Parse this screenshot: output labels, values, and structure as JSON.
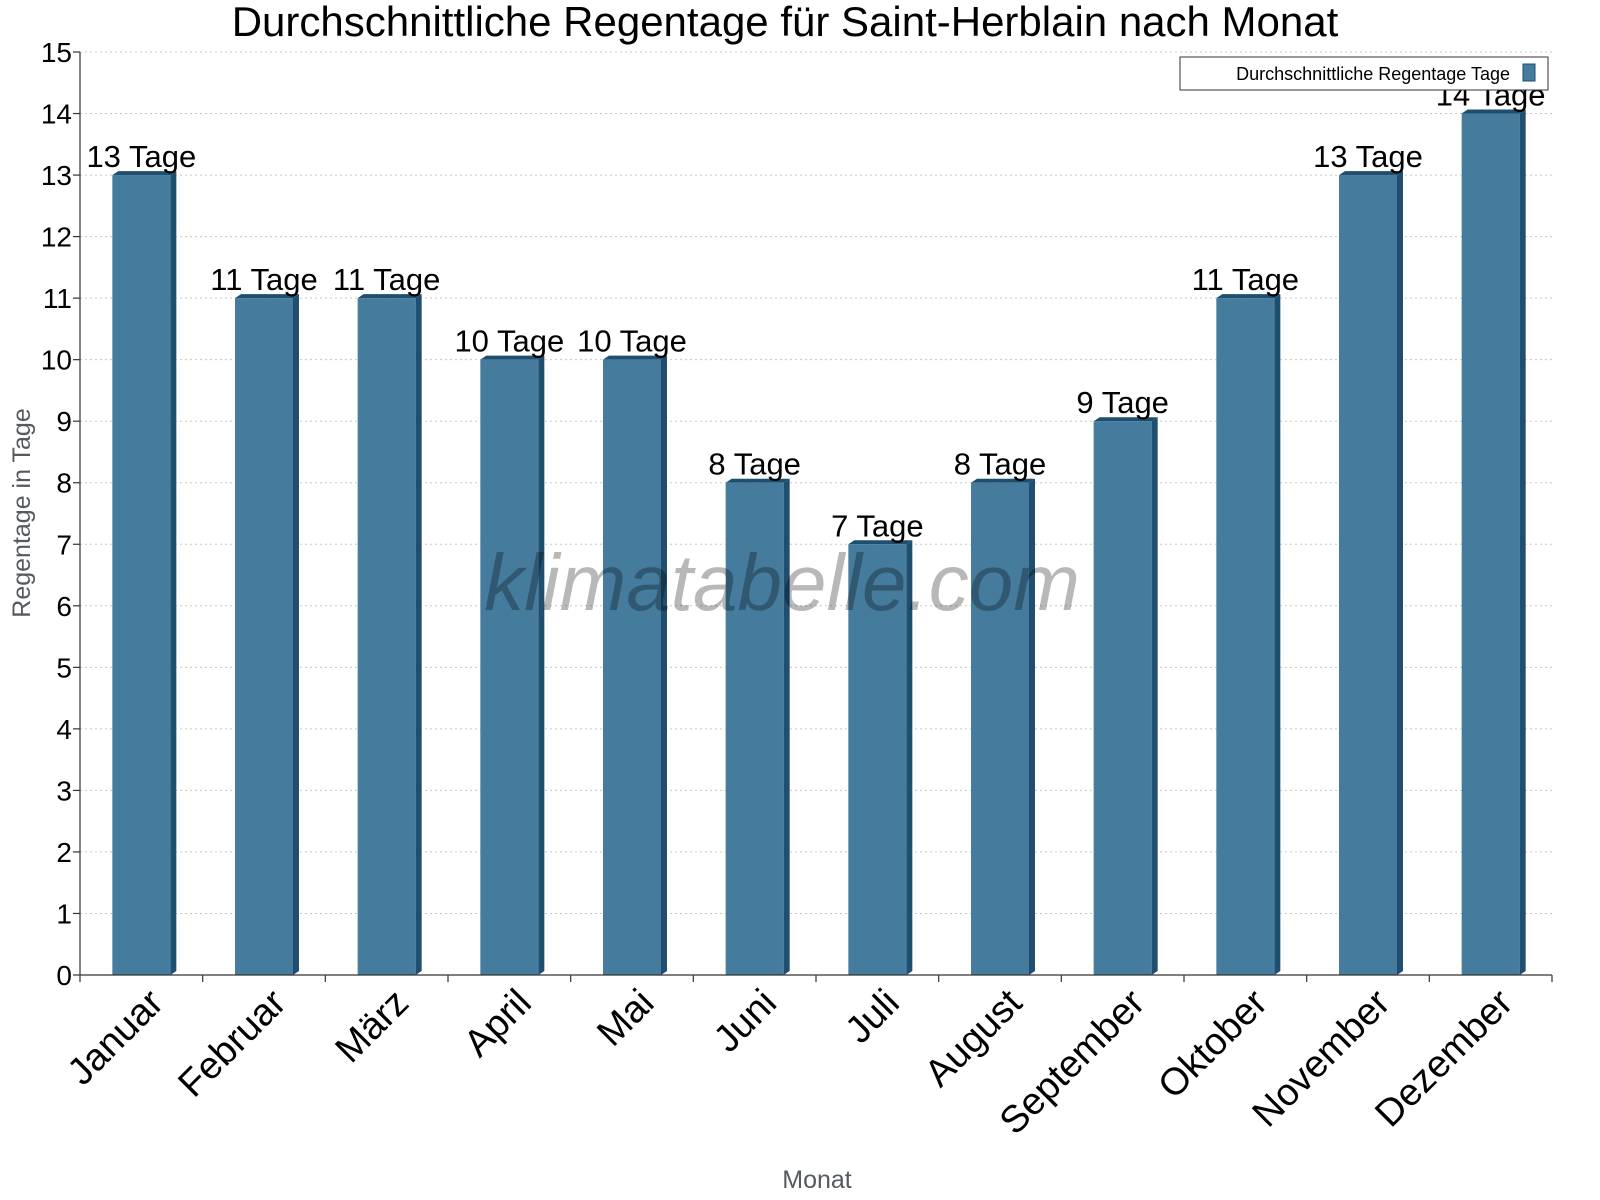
{
  "chart_data": {
    "type": "bar",
    "title": "Durchschnittliche Regentage für Saint-Herblain nach Monat",
    "xlabel": "Monat",
    "ylabel": "Regentage in Tage",
    "ylim": [
      0,
      15
    ],
    "yticks": [
      "0",
      "1",
      "2",
      "3",
      "4",
      "5",
      "6",
      "7",
      "8",
      "9",
      "10",
      "11",
      "12",
      "13",
      "14",
      "15"
    ],
    "grid": true,
    "legend_position": "top-right",
    "categories": [
      "Januar",
      "Februar",
      "März",
      "April",
      "Mai",
      "Juni",
      "Juli",
      "August",
      "September",
      "Oktober",
      "November",
      "Dezember"
    ],
    "series": [
      {
        "name": "Durchschnittliche Regentage Tage",
        "values": [
          13,
          11,
          11,
          10,
          10,
          8,
          7,
          8,
          9,
          11,
          13,
          14
        ],
        "data_labels": [
          "13 Tage",
          "11 Tage",
          "11 Tage",
          "10 Tage",
          "10 Tage",
          "8 Tage",
          "7 Tage",
          "8 Tage",
          "9 Tage",
          "11 Tage",
          "13 Tage",
          "14 Tage"
        ],
        "color": "#457b9d",
        "side_color": "#1f4e6e"
      }
    ],
    "watermark": "klimatabelle.com"
  }
}
